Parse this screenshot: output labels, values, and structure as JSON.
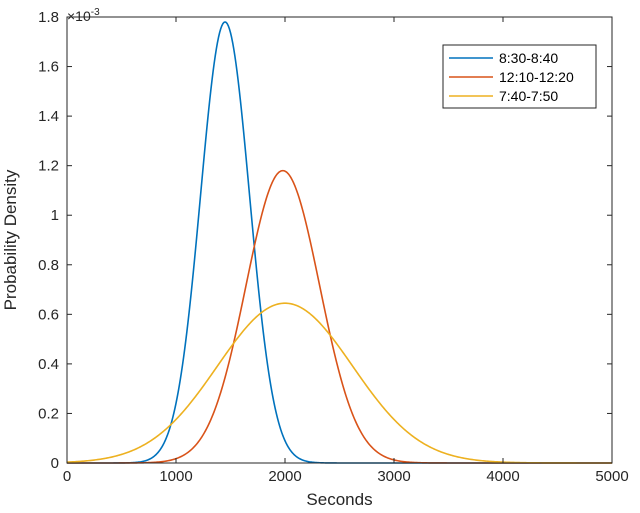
{
  "chart_data": {
    "type": "line",
    "xlabel": "Seconds",
    "ylabel": "Probability Density",
    "y_exponent_label": {
      "base": "×10",
      "power": "-3"
    },
    "xlim": [
      0,
      5000
    ],
    "ylim": [
      0,
      1.8
    ],
    "x_ticks": [
      0,
      1000,
      2000,
      3000,
      4000,
      5000
    ],
    "x_tick_labels": [
      "0",
      "1000",
      "2000",
      "3000",
      "4000",
      "5000"
    ],
    "y_ticks": [
      0,
      0.2,
      0.4,
      0.6,
      0.8,
      1.0,
      1.2,
      1.4,
      1.6,
      1.8
    ],
    "y_tick_labels": [
      "0",
      "0.2",
      "0.4",
      "0.6",
      "0.8",
      "1",
      "1.2",
      "1.4",
      "1.6",
      "1.8"
    ],
    "grid": false,
    "legend_position": "top-right",
    "series": [
      {
        "name": "8:30-8:40",
        "color": "#0072bd",
        "distribution": "normal",
        "mean": 1450,
        "sd": 225,
        "peak": 1.78
      },
      {
        "name": "12:10-12:20",
        "color": "#d95319",
        "distribution": "normal",
        "mean": 1980,
        "sd": 338,
        "peak": 1.18
      },
      {
        "name": "7:40-7:50",
        "color": "#edb120",
        "distribution": "normal",
        "mean": 2000,
        "sd": 620,
        "peak": 0.645
      }
    ]
  }
}
